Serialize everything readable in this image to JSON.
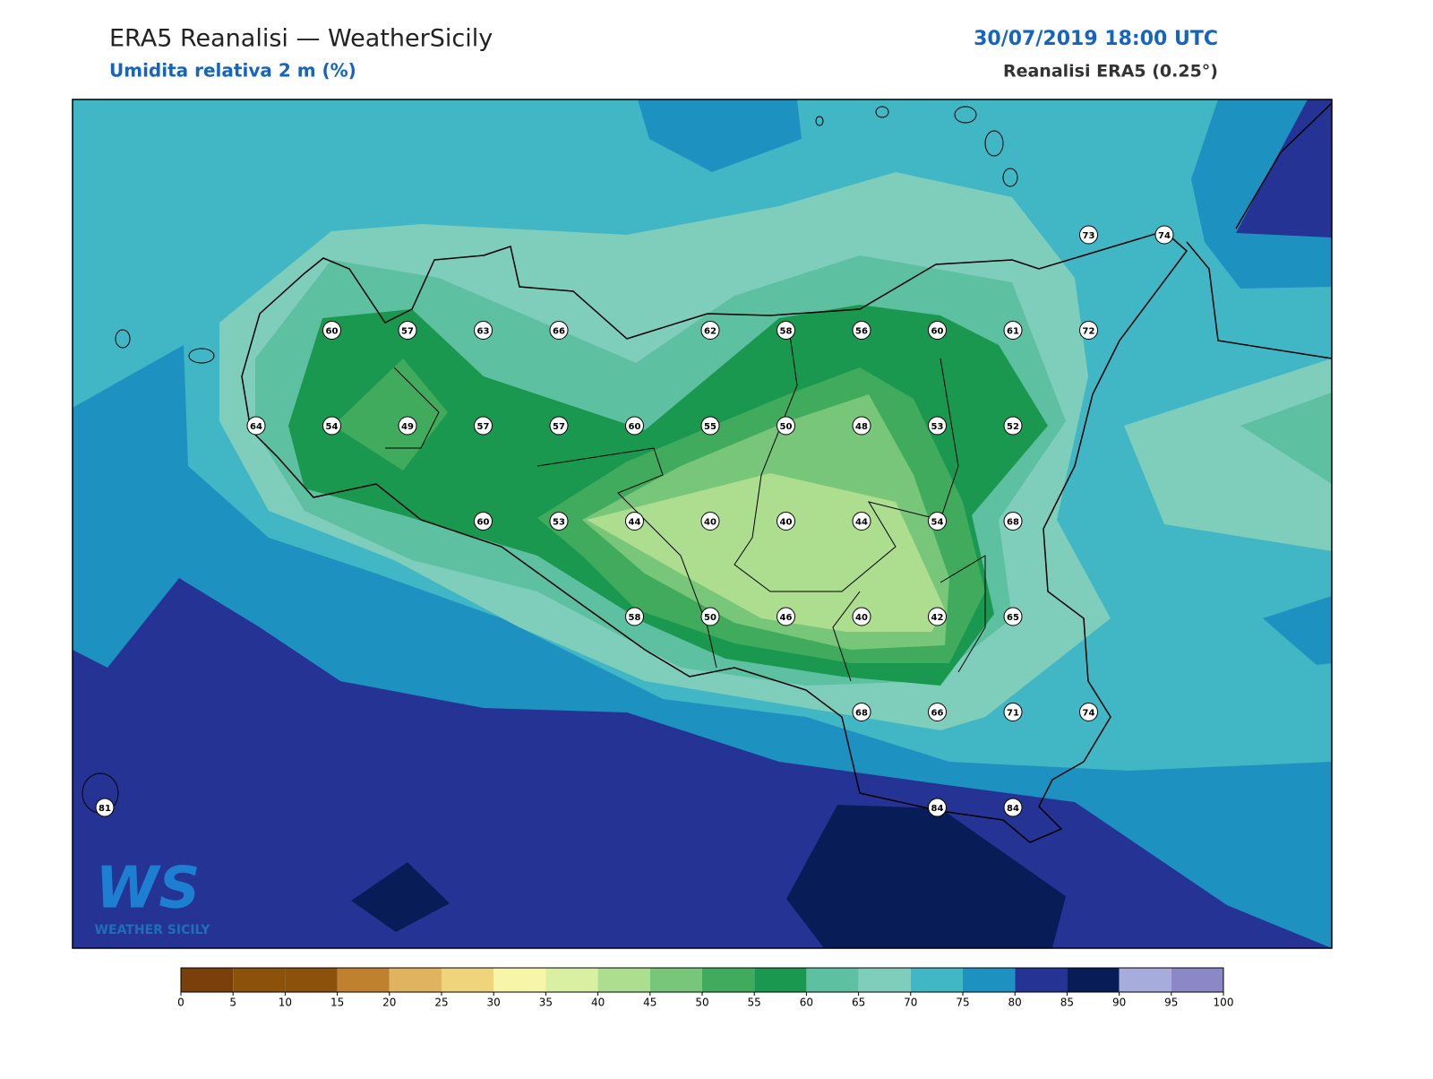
{
  "header": {
    "title": "ERA5 Reanalisi — WeatherSicily",
    "subtitle": "Umidita relativa 2 m (%)",
    "datetime": "30/07/2019 18:00 UTC",
    "source": "Reanalisi ERA5 (0.25°)"
  },
  "map": {
    "station_grid": [
      [
        null,
        null,
        null,
        null,
        null,
        null,
        null,
        null,
        null,
        null,
        null,
        null,
        null,
        73,
        74
      ],
      [
        null,
        null,
        null,
        60,
        57,
        63,
        66,
        null,
        62,
        58,
        56,
        60,
        61,
        72,
        null
      ],
      [
        null,
        null,
        64,
        54,
        49,
        57,
        57,
        60,
        55,
        50,
        48,
        53,
        52,
        null,
        null
      ],
      [
        null,
        null,
        null,
        null,
        null,
        60,
        53,
        44,
        40,
        40,
        44,
        54,
        68,
        null,
        null
      ],
      [
        null,
        null,
        null,
        null,
        null,
        null,
        null,
        58,
        50,
        46,
        40,
        42,
        65,
        null,
        null
      ],
      [
        null,
        null,
        null,
        null,
        null,
        null,
        null,
        null,
        null,
        null,
        68,
        66,
        71,
        74,
        null
      ],
      [
        81,
        null,
        null,
        null,
        null,
        null,
        null,
        null,
        null,
        null,
        null,
        84,
        84,
        null,
        null
      ]
    ]
  },
  "colorbar": {
    "ticks": [
      0,
      5,
      10,
      15,
      20,
      25,
      30,
      35,
      40,
      45,
      50,
      55,
      60,
      65,
      70,
      75,
      80,
      85,
      90,
      95,
      100
    ],
    "colors": [
      "#7a3f0a",
      "#8c510a",
      "#8c510a",
      "#bf812d",
      "#dfb35f",
      "#f0d47c",
      "#f6f5a8",
      "#d9f0a3",
      "#addd8e",
      "#78c679",
      "#41ab5d",
      "#1a9850",
      "#5dc0a0",
      "#7fcdbb",
      "#41b6c4",
      "#1d91c0",
      "#253494",
      "#081d58",
      "#a6acdc",
      "#8c88c8"
    ]
  },
  "logo": {
    "mark": "WS",
    "text": "WEATHER SICILY"
  }
}
